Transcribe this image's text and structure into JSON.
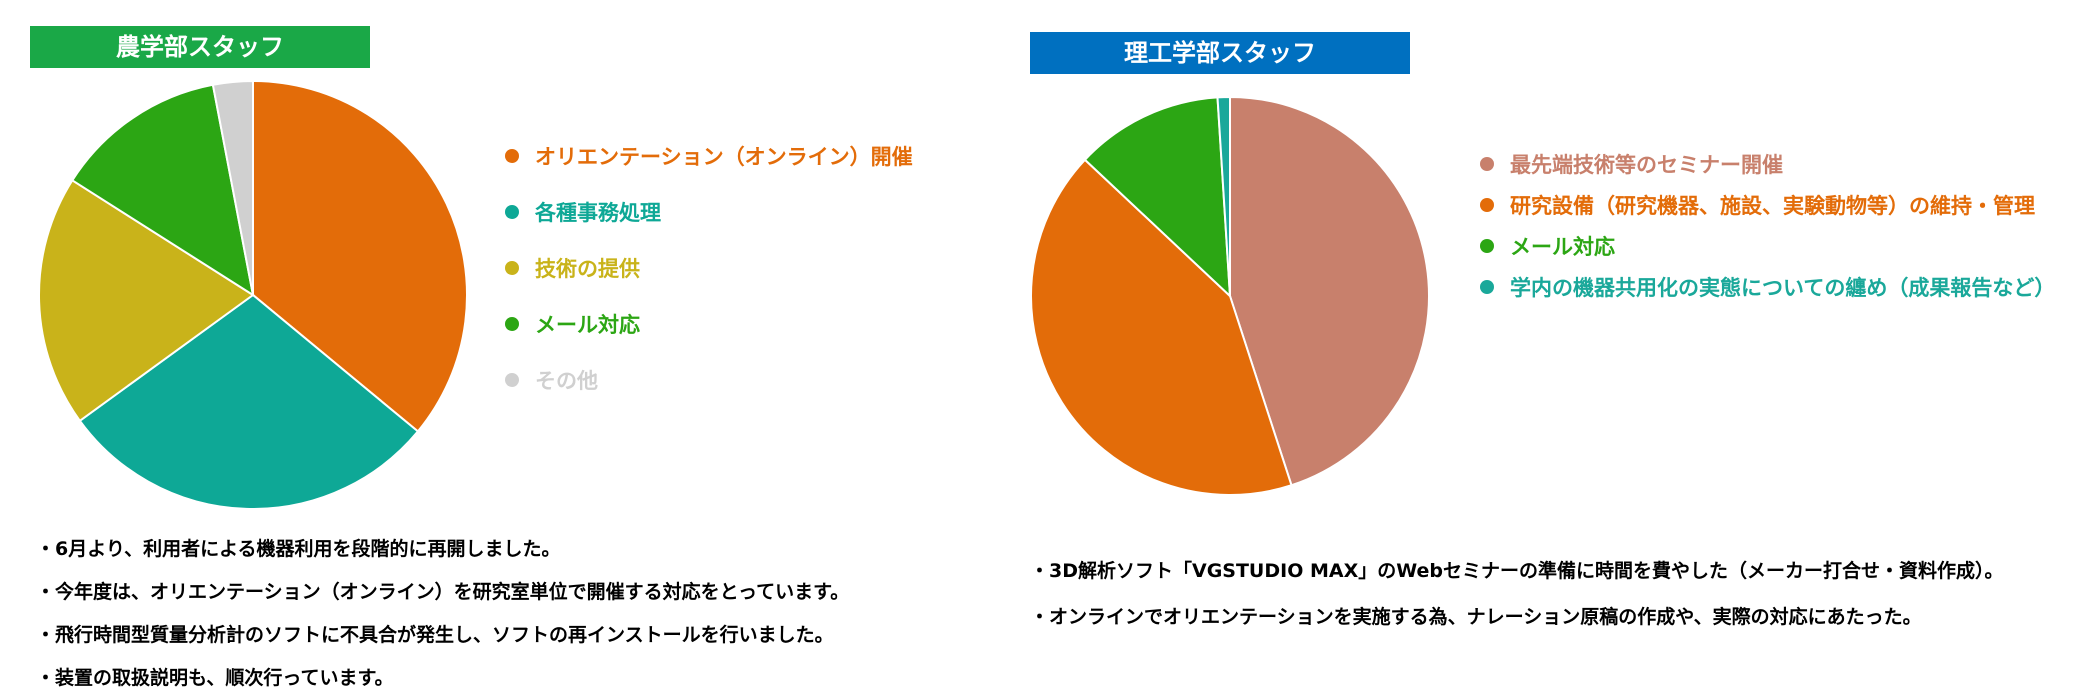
{
  "chart_data": [
    {
      "type": "pie",
      "title": "農学部スタッフ",
      "title_color": "#1aa847",
      "labels": [
        "オリエンテーション（オンライン）開催",
        "各種事務処理",
        "技術の提供",
        "メール対応",
        "その他"
      ],
      "values": [
        36,
        29,
        19,
        13,
        3
      ],
      "colors": [
        "#e36c09",
        "#0ea896",
        "#c9b31a",
        "#2ca614",
        "#d0d0d0"
      ],
      "legend_placement": "right",
      "notes": [
        "・6月より、利用者による機器利用を段階的に再開しました。",
        "・今年度は、オリエンテーション（オンライン）を研究室単位で開催する対応をとっています。",
        "・飛行時間型質量分析計のソフトに不具合が発生し、ソフトの再インストールを行いました。",
        "・装置の取扱説明も、順次行っています。"
      ]
    },
    {
      "type": "pie",
      "title": "理工学部スタッフ",
      "title_color": "#0070c0",
      "labels": [
        "最先端技術等のセミナー開催",
        "研究設備（研究機器、施設、実験動物等）の維持・管理",
        "メール対応",
        "学内の機器共用化の実態についての纏め（成果報告など）"
      ],
      "values": [
        45,
        42,
        12,
        1
      ],
      "colors": [
        "#c8806c",
        "#e36c09",
        "#2ca614",
        "#1aa89a"
      ],
      "legend_placement": "right",
      "notes": [
        "・3D解析ソフト「VGSTUDIO MAX」のWebセミナーの準備に時間を費やした（メーカー打合せ・資料作成）。",
        "・オンラインでオリエンテーションを実施する為、ナレーション原稿の作成や、実際の対応にあたった。"
      ]
    }
  ]
}
